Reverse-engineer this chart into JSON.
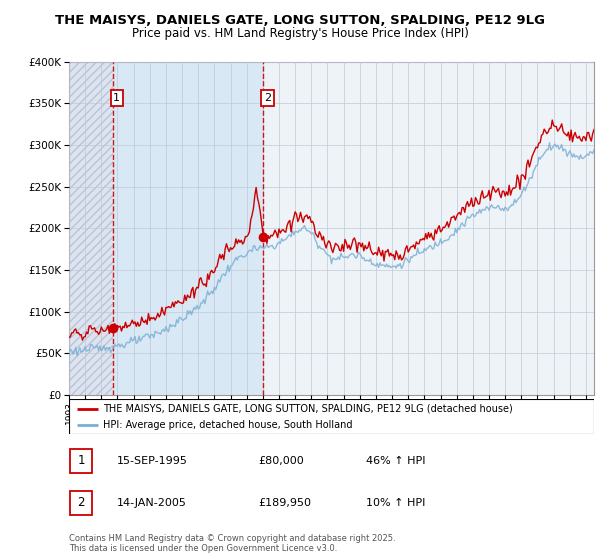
{
  "title": "THE MAISYS, DANIELS GATE, LONG SUTTON, SPALDING, PE12 9LG",
  "subtitle": "Price paid vs. HM Land Registry's House Price Index (HPI)",
  "legend_line1": "THE MAISYS, DANIELS GATE, LONG SUTTON, SPALDING, PE12 9LG (detached house)",
  "legend_line2": "HPI: Average price, detached house, South Holland",
  "footer": "Contains HM Land Registry data © Crown copyright and database right 2025.\nThis data is licensed under the Open Government Licence v3.0.",
  "table": [
    {
      "num": 1,
      "date": "15-SEP-1995",
      "price": "£80,000",
      "change": "46% ↑ HPI"
    },
    {
      "num": 2,
      "date": "14-JAN-2005",
      "price": "£189,950",
      "change": "10% ↑ HPI"
    }
  ],
  "purchase1_year": 1995.71,
  "purchase1_price": 80000,
  "purchase2_year": 2005.04,
  "purchase2_price": 189950,
  "hpi_color": "#7bafd4",
  "price_color": "#cc0000",
  "ylim": [
    0,
    400000
  ],
  "xlim_start": 1993.0,
  "xlim_end": 2025.5
}
